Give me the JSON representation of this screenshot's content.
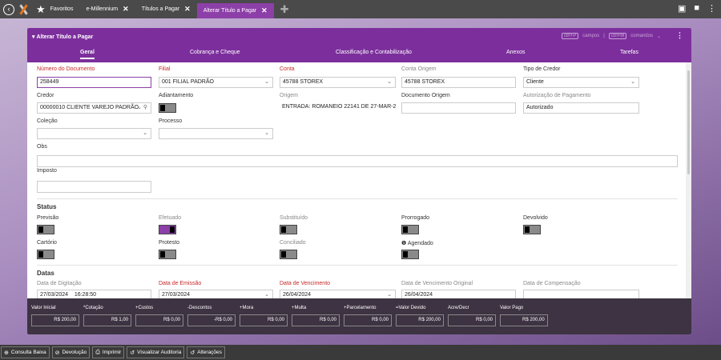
{
  "topbar": {
    "tabs": [
      {
        "label": "Favoritos"
      },
      {
        "label": "e-Millennium"
      },
      {
        "label": "Títulos a Pagar"
      },
      {
        "label": "Alterar Título a Pagar"
      }
    ]
  },
  "panel": {
    "title": "Alterar Título a Pagar",
    "shortcut_fields_key": "ctrl+P",
    "shortcut_fields_label": "campos",
    "shortcut_sep": "|",
    "shortcut_cmd_key": "ctrl+M",
    "shortcut_cmd_label": "comandos",
    "tabs": [
      "Geral",
      "Cobrança e Cheque",
      "Classificação e Contabilização",
      "Anexos",
      "Tarefas"
    ]
  },
  "form": {
    "numero_documento": {
      "label": "Número do Documento",
      "value": "258449"
    },
    "filial": {
      "label": "Filial",
      "value": "001 FILIAL PADRÃO"
    },
    "conta": {
      "label": "Conta",
      "value": "45788 STOREX"
    },
    "conta_origem": {
      "label": "Conta Origem",
      "value": "45788 STOREX"
    },
    "tipo_credor": {
      "label": "Tipo de Credor",
      "value": "Cliente"
    },
    "credor": {
      "label": "Credor",
      "value": "00000010 CLIENTE VAREJO PADRÃO"
    },
    "adiantamento": {
      "label": "Adiantamento"
    },
    "origem": {
      "label": "Origem",
      "value": "ENTRADA:  ROMANEIO 22141 DE 27-MAR-2"
    },
    "documento_origem": {
      "label": "Documento Origem",
      "value": ""
    },
    "autorizacao": {
      "label": "Autorização de Pagamento",
      "value": "Autorizado"
    },
    "colecao": {
      "label": "Coleção",
      "value": ""
    },
    "processo": {
      "label": "Processo",
      "value": ""
    },
    "obs": {
      "label": "Obs",
      "value": ""
    },
    "imposto": {
      "label": "Imposto",
      "value": ""
    }
  },
  "status": {
    "title": "Status",
    "items": [
      {
        "label": "Previsão",
        "on": false
      },
      {
        "label": "Efetuado",
        "on": true
      },
      {
        "label": "Substituído",
        "on": false
      },
      {
        "label": "Prorrogado",
        "on": false
      },
      {
        "label": "Devolvido",
        "on": false
      },
      {
        "label": "Cartório",
        "on": false
      },
      {
        "label": "Protesto",
        "on": false
      },
      {
        "label": "Conciliado",
        "on": false
      },
      {
        "label": "Agendado",
        "on": false
      }
    ]
  },
  "datas": {
    "title": "Datas",
    "digitacao": {
      "label": "Data de Digitação",
      "value": "27/03/2024",
      "time": "16:28:50"
    },
    "emissao": {
      "label": "Data de Emissão",
      "value": "27/03/2024"
    },
    "vencimento": {
      "label": "Data de Vencimento",
      "value": "26/04/2024"
    },
    "vencimento_original": {
      "label": "Data de Vencimento Original",
      "value": "26/04/2024"
    },
    "compensacao": {
      "label": "Data de Compensação",
      "value": ""
    }
  },
  "footer": [
    {
      "label": "Valor Inicial",
      "value": "R$ 200,00"
    },
    {
      "label": "*Cotação",
      "value": "R$ 1,00"
    },
    {
      "label": "+Custos",
      "value": "R$ 0,00"
    },
    {
      "label": "-Descontos",
      "value": "-R$ 0,00"
    },
    {
      "label": "+Mora",
      "value": "R$ 0,00"
    },
    {
      "label": "+Multa",
      "value": "R$ 0,00"
    },
    {
      "label": "+Parcelamento",
      "value": "R$ 0,00"
    },
    {
      "label": "=Valor Devido",
      "value": "R$ 200,00"
    },
    {
      "label": "Acre/Decr",
      "value": "R$ 0,00"
    },
    {
      "label": "Valor Pago",
      "value": "R$ 200,00"
    }
  ],
  "actions": [
    {
      "label": "Consulta Baixa"
    },
    {
      "label": "Devolução"
    },
    {
      "label": "Imprimir"
    },
    {
      "label": "Visualizar Auditoria"
    },
    {
      "label": "Alterações"
    }
  ]
}
